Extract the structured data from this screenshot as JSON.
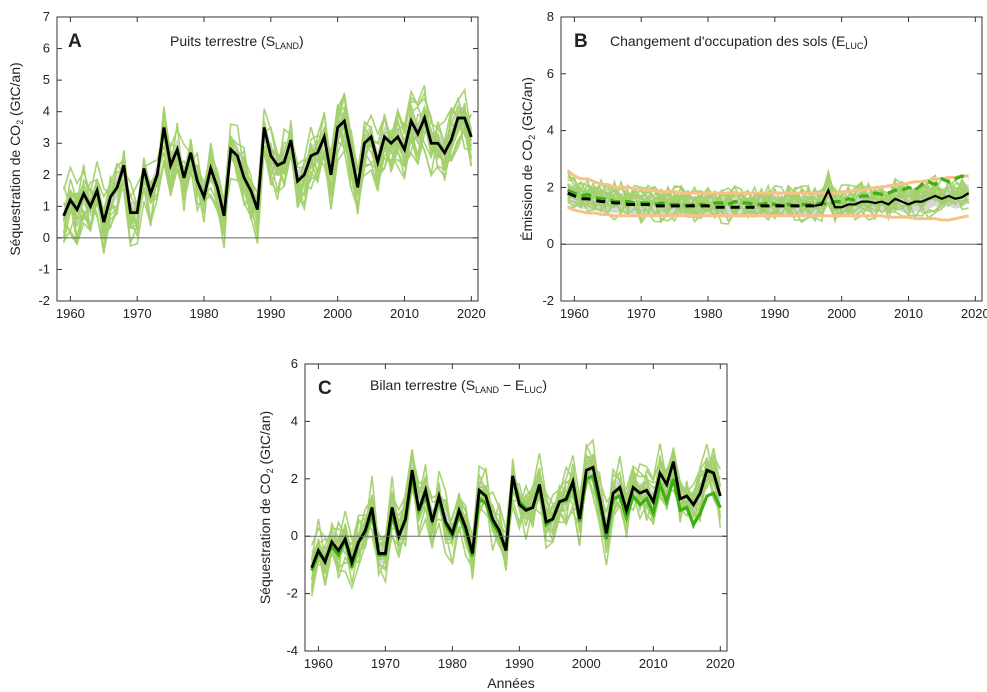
{
  "figure": {
    "xlabel": "Années"
  },
  "chart_data": [
    {
      "panel": "A",
      "type": "line",
      "title": "Puits terrestre (S",
      "title_sub": "LAND",
      "title_end": ")",
      "ylabel": "Séquestration de CO",
      "ylabel_sub": "2",
      "ylabel_end": " (GtC/an)",
      "xlabel": "",
      "xlim": [
        1958,
        2021
      ],
      "ylim": [
        -2,
        7
      ],
      "xticks": [
        1960,
        1970,
        1980,
        1990,
        2000,
        2010,
        2020
      ],
      "yticks": [
        -2,
        -1,
        0,
        1,
        2,
        3,
        4,
        5,
        6,
        7
      ],
      "zero_line": true,
      "colors": {
        "ensemble": "#a3d16d",
        "mean": "#000000",
        "band": "#cccccc"
      },
      "series": [
        {
          "role": "mean",
          "x_start": 1959,
          "values": [
            0.7,
            1.2,
            0.9,
            1.4,
            1.0,
            1.5,
            0.5,
            1.3,
            1.6,
            2.3,
            0.8,
            0.8,
            2.2,
            1.4,
            2.0,
            3.5,
            2.3,
            2.8,
            1.9,
            2.7,
            1.8,
            1.3,
            2.2,
            1.6,
            0.7,
            2.8,
            2.6,
            1.9,
            1.5,
            0.9,
            3.5,
            2.6,
            2.3,
            2.4,
            3.1,
            1.8,
            2.0,
            2.6,
            2.7,
            3.2,
            2.0,
            3.5,
            3.7,
            2.7,
            1.6,
            3.0,
            3.2,
            2.4,
            3.2,
            3.0,
            3.2,
            2.8,
            3.7,
            3.3,
            3.8,
            3.0,
            3.0,
            2.7,
            3.1,
            3.8,
            3.8,
            3.2
          ]
        }
      ]
    },
    {
      "panel": "B",
      "type": "line",
      "title": "Changement d'occupation des sols (E",
      "title_sub": "LUC",
      "title_end": ")",
      "ylabel": "Émission de CO",
      "ylabel_sub": "2",
      "ylabel_end": " (GtC/an)",
      "xlabel": "",
      "xlim": [
        1958,
        2021
      ],
      "ylim": [
        -2,
        8
      ],
      "xticks": [
        1960,
        1970,
        1980,
        1990,
        2000,
        2010,
        2020
      ],
      "yticks": [
        -2,
        0,
        2,
        4,
        6,
        8
      ],
      "zero_line": true,
      "colors": {
        "ensemble": "#a3d16d",
        "mean": "#000000",
        "band": "#cccccc",
        "bookkeeping": "#3cb014",
        "envelope": "#f5c38a"
      },
      "series": [
        {
          "role": "mean",
          "x_start": 1959,
          "values": [
            1.8,
            1.7,
            1.6,
            1.6,
            1.55,
            1.5,
            1.5,
            1.45,
            1.45,
            1.4,
            1.4,
            1.4,
            1.4,
            1.35,
            1.35,
            1.35,
            1.35,
            1.35,
            1.35,
            1.35,
            1.35,
            1.35,
            1.3,
            1.3,
            1.3,
            1.3,
            1.3,
            1.3,
            1.3,
            1.35,
            1.35,
            1.35,
            1.35,
            1.35,
            1.35,
            1.35,
            1.35,
            1.35,
            1.4,
            1.9,
            1.3,
            1.3,
            1.4,
            1.4,
            1.5,
            1.5,
            1.45,
            1.5,
            1.4,
            1.6,
            1.5,
            1.4,
            1.5,
            1.5,
            1.6,
            1.7,
            1.6,
            1.7,
            1.6,
            1.65,
            1.8
          ]
        },
        {
          "role": "bookkeeping",
          "x_start": 1959,
          "values": [
            1.9,
            1.8,
            1.7,
            1.75,
            1.65,
            1.6,
            1.6,
            1.5,
            1.5,
            1.5,
            1.45,
            1.45,
            1.45,
            1.4,
            1.45,
            1.4,
            1.4,
            1.4,
            1.35,
            1.4,
            1.4,
            1.35,
            1.45,
            1.45,
            1.4,
            1.5,
            1.45,
            1.45,
            1.4,
            1.4,
            1.45,
            1.4,
            1.35,
            1.4,
            1.35,
            1.4,
            1.4,
            1.4,
            1.45,
            1.4,
            1.5,
            1.5,
            1.6,
            1.55,
            1.7,
            1.7,
            1.8,
            1.75,
            1.8,
            1.9,
            1.9,
            2.0,
            1.9,
            2.1,
            2.2,
            2.1,
            2.3,
            2.2,
            2.3,
            2.4,
            2.3
          ]
        },
        {
          "role": "envelope_upper",
          "x_start": 1959,
          "values": [
            2.6,
            2.4,
            2.3,
            2.3,
            2.2,
            2.1,
            2.1,
            2.0,
            2.0,
            2.0,
            1.95,
            1.95,
            1.9,
            1.9,
            1.85,
            1.85,
            1.85,
            1.8,
            1.8,
            1.8,
            1.8,
            1.8,
            1.8,
            1.8,
            1.8,
            1.8,
            1.8,
            1.8,
            1.8,
            1.8,
            1.8,
            1.8,
            1.8,
            1.8,
            1.8,
            1.8,
            1.8,
            1.8,
            1.8,
            1.8,
            1.8,
            1.85,
            1.85,
            1.9,
            1.9,
            1.95,
            2.0,
            2.0,
            2.05,
            2.1,
            2.1,
            2.15,
            2.2,
            2.2,
            2.25,
            2.3,
            2.3,
            2.35,
            2.35,
            2.4,
            2.4
          ]
        },
        {
          "role": "envelope_lower",
          "x_start": 1959,
          "values": [
            1.3,
            1.2,
            1.15,
            1.1,
            1.1,
            1.05,
            1.05,
            1.0,
            1.0,
            1.0,
            1.0,
            1.0,
            1.0,
            1.0,
            1.0,
            1.0,
            1.0,
            1.0,
            1.0,
            1.0,
            1.0,
            1.0,
            1.0,
            1.0,
            1.0,
            1.0,
            1.0,
            1.0,
            1.0,
            1.0,
            1.0,
            1.0,
            1.0,
            1.0,
            1.0,
            1.0,
            1.0,
            1.0,
            1.0,
            1.0,
            1.0,
            1.0,
            1.0,
            1.0,
            1.0,
            1.0,
            1.0,
            1.0,
            0.95,
            0.95,
            0.95,
            0.95,
            0.9,
            0.9,
            0.9,
            0.9,
            0.85,
            0.85,
            0.9,
            0.95,
            1.0
          ]
        }
      ]
    },
    {
      "panel": "C",
      "type": "line",
      "title": "Bilan terrestre (S",
      "title_sub": "LAND",
      "title_mid": " − E",
      "title_sub2": "LUC",
      "title_end": ")",
      "ylabel": "Séquestration de CO",
      "ylabel_sub": "2",
      "ylabel_end": " (GtC/an)",
      "xlabel": "Années",
      "xlim": [
        1958,
        2021
      ],
      "ylim": [
        -4,
        6
      ],
      "xticks": [
        1960,
        1970,
        1980,
        1990,
        2000,
        2010,
        2020
      ],
      "yticks": [
        -4,
        -2,
        0,
        2,
        4,
        6
      ],
      "zero_line": true,
      "colors": {
        "ensemble": "#a3d16d",
        "mean": "#000000",
        "band": "#cccccc",
        "bookkeeping": "#3cb014"
      },
      "series": [
        {
          "role": "mean",
          "x_start": 1959,
          "values": [
            -1.1,
            -0.5,
            -0.9,
            -0.2,
            -0.5,
            -0.1,
            -0.9,
            -0.2,
            0.2,
            1.0,
            -0.6,
            -0.6,
            1.0,
            0.0,
            0.6,
            2.3,
            0.9,
            1.6,
            0.5,
            1.4,
            0.5,
            0.1,
            0.9,
            0.3,
            -0.6,
            1.6,
            1.4,
            0.6,
            0.2,
            -0.5,
            2.1,
            1.1,
            0.9,
            1.0,
            1.8,
            0.5,
            0.6,
            1.2,
            1.3,
            1.9,
            0.6,
            2.3,
            2.4,
            1.3,
            0.1,
            1.5,
            1.7,
            0.9,
            1.7,
            1.5,
            1.6,
            1.2,
            2.2,
            1.8,
            2.6,
            1.3,
            1.4,
            1.1,
            1.5,
            2.3,
            2.2,
            1.4
          ]
        },
        {
          "role": "bookkeeping",
          "x_start": 1959,
          "values": [
            -1.2,
            -0.6,
            -0.8,
            -0.35,
            -0.65,
            -0.1,
            -1.1,
            -0.2,
            0.1,
            0.8,
            -0.65,
            -0.65,
            0.75,
            0.0,
            0.55,
            2.1,
            0.9,
            1.4,
            0.55,
            1.3,
            0.4,
            0.0,
            0.75,
            0.15,
            -0.7,
            1.3,
            1.15,
            0.45,
            0.1,
            -0.5,
            2.05,
            1.2,
            0.95,
            1.0,
            1.75,
            0.4,
            0.6,
            1.2,
            1.25,
            1.8,
            0.5,
            2.0,
            2.1,
            1.15,
            -0.1,
            1.3,
            1.4,
            0.65,
            1.4,
            1.1,
            1.3,
            0.8,
            1.8,
            1.2,
            2.0,
            0.9,
            1.0,
            0.4,
            0.8,
            1.4,
            1.5,
            1.0
          ]
        }
      ]
    }
  ]
}
